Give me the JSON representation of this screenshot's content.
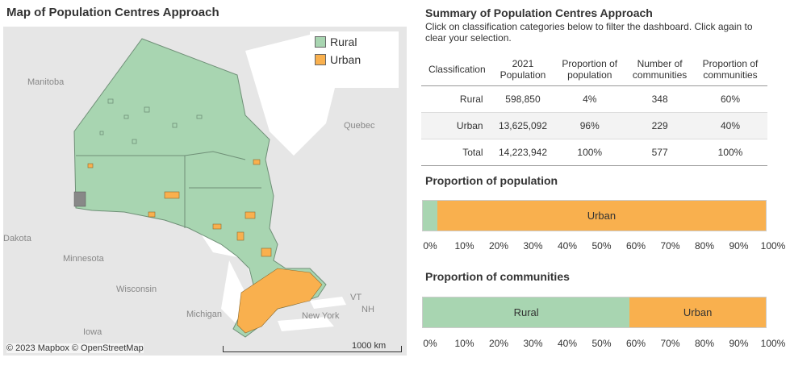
{
  "map": {
    "title": "Map of Population Centres Approach",
    "legend": [
      {
        "label": "Rural",
        "color": "#a8d5b1"
      },
      {
        "label": "Urban",
        "color": "#f9b04e"
      }
    ],
    "places": [
      "Manitoba",
      "Quebec",
      "Dakota",
      "Minnesota",
      "Wisconsin",
      "Michigan",
      "New York",
      "Iowa",
      "VT",
      "NH"
    ],
    "copyright": "© 2023 Mapbox © OpenStreetMap",
    "scale": "1000 km"
  },
  "summary": {
    "title": "Summary of Population Centres Approach",
    "instructions": "Click on classification categories below to filter the dashboard. Click again to clear your selection.",
    "headers": [
      "Classification",
      "2021 Population",
      "Proportion of population",
      "Number of communities",
      "Proportion of communities"
    ],
    "rows": [
      {
        "classification": "Rural",
        "population": "598,850",
        "prop_pop": "4%",
        "communities": "348",
        "prop_comm": "60%"
      },
      {
        "classification": "Urban",
        "population": "13,625,092",
        "prop_pop": "96%",
        "communities": "229",
        "prop_comm": "40%"
      },
      {
        "classification": "Total",
        "population": "14,223,942",
        "prop_pop": "100%",
        "communities": "577",
        "prop_comm": "100%"
      }
    ]
  },
  "chart_data": [
    {
      "type": "bar",
      "title": "Proportion of population",
      "orientation": "horizontal-stacked",
      "series": [
        {
          "name": "Rural",
          "values": [
            4.2
          ],
          "label": ""
        },
        {
          "name": "Urban",
          "values": [
            95.8
          ],
          "label": "Urban"
        }
      ],
      "xlim": [
        0,
        100
      ],
      "ticks": [
        "0%",
        "10%",
        "20%",
        "30%",
        "40%",
        "50%",
        "60%",
        "70%",
        "80%",
        "90%",
        "100%"
      ]
    },
    {
      "type": "bar",
      "title": "Proportion of communities",
      "orientation": "horizontal-stacked",
      "series": [
        {
          "name": "Rural",
          "values": [
            60.3
          ],
          "label": "Rural"
        },
        {
          "name": "Urban",
          "values": [
            39.7
          ],
          "label": "Urban"
        }
      ],
      "xlim": [
        0,
        100
      ],
      "ticks": [
        "0%",
        "10%",
        "20%",
        "30%",
        "40%",
        "50%",
        "60%",
        "70%",
        "80%",
        "90%",
        "100%"
      ]
    }
  ],
  "colors": {
    "rural": "#a8d5b1",
    "urban": "#f9b04e"
  }
}
